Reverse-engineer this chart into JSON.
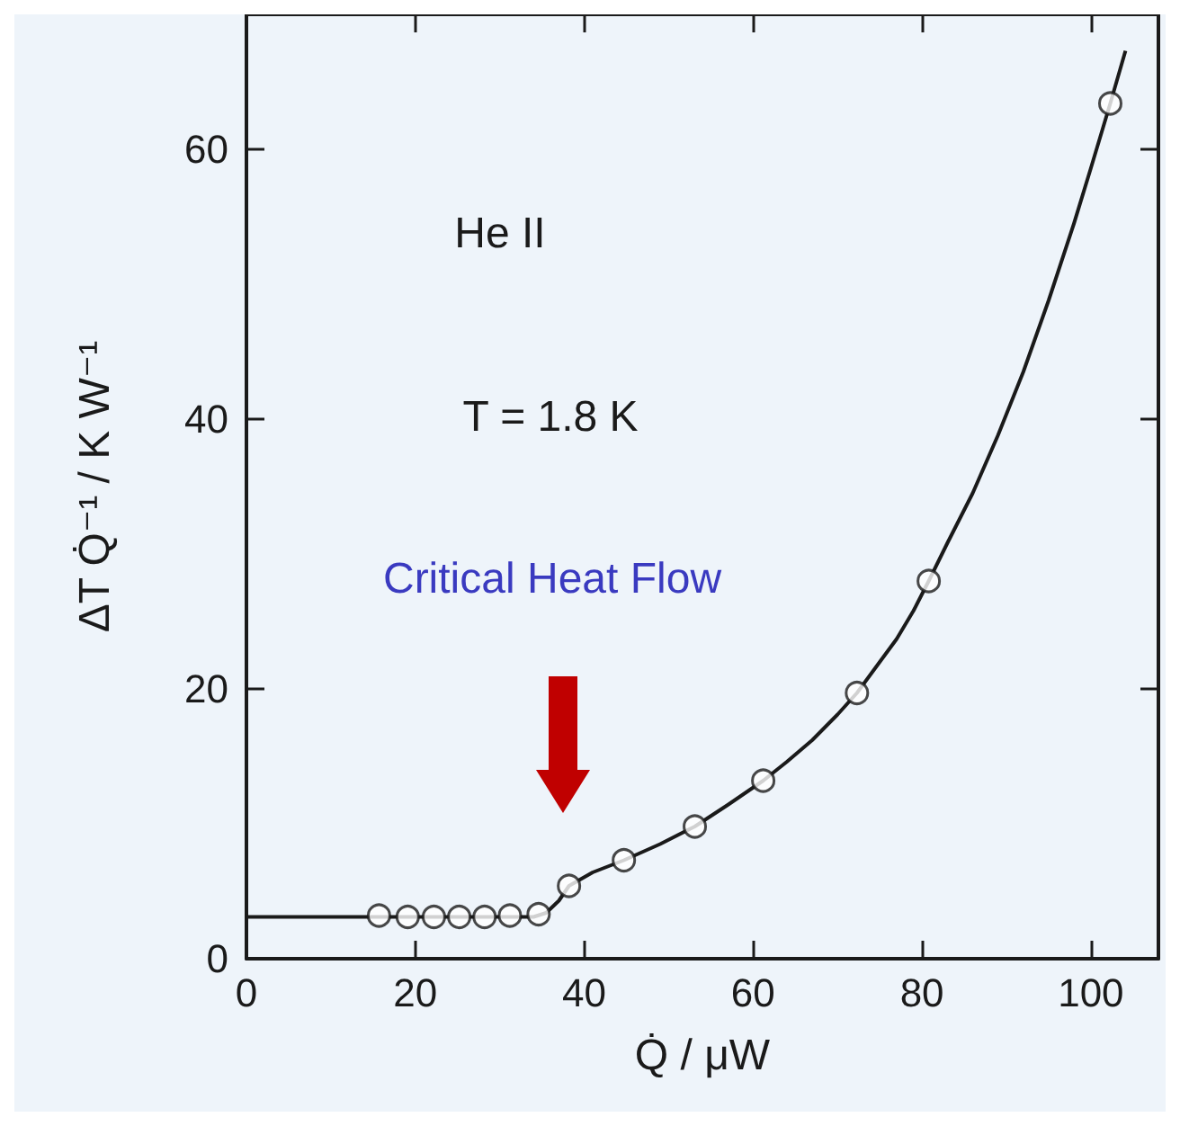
{
  "chart_data": {
    "type": "scatter",
    "xlabel": "Q̇ / μW",
    "ylabel": "ΔT Q̇⁻¹ / K W⁻¹",
    "xlim": [
      0,
      108
    ],
    "xticks": [
      0,
      20,
      40,
      60,
      80,
      100
    ],
    "ylim": [
      0,
      70
    ],
    "yticks": [
      0,
      20,
      40,
      60
    ],
    "grid": false,
    "marker": "circle",
    "annotations": [
      "He II",
      "T = 1.8 K",
      "Critical Heat Flow"
    ],
    "series": [
      {
        "color": "#1a1a1a",
        "x": [
          15.7,
          19.1,
          22.2,
          25.2,
          28.2,
          31.2,
          34.6,
          38.2,
          44.7,
          53.1,
          61.2,
          72.3,
          80.8,
          102.3
        ],
        "values": [
          3.2,
          3.1,
          3.1,
          3.1,
          3.1,
          3.2,
          3.3,
          5.4,
          7.3,
          9.8,
          13.2,
          19.7,
          28.0,
          63.4
        ]
      },
      {
        "type": "line",
        "color": "#1a1a1a",
        "marker": "none",
        "line_style": "solid",
        "x": [
          0,
          20,
          34,
          35.5,
          37,
          38.2,
          41,
          44.7,
          49,
          53.1,
          57,
          61.2,
          64,
          67,
          70,
          72.3,
          75,
          77,
          79,
          80.8,
          83,
          86,
          89,
          92,
          95,
          98,
          100,
          102.3,
          104.1
        ],
        "values": [
          3.1,
          3.1,
          3.1,
          3.4,
          4.3,
          5.4,
          6.4,
          7.3,
          8.5,
          9.8,
          11.4,
          13.2,
          14.6,
          16.2,
          18.1,
          19.7,
          22.0,
          23.7,
          25.8,
          28.0,
          30.8,
          34.5,
          38.8,
          43.5,
          48.8,
          54.5,
          58.6,
          63.4,
          67.3
        ]
      }
    ]
  }
}
